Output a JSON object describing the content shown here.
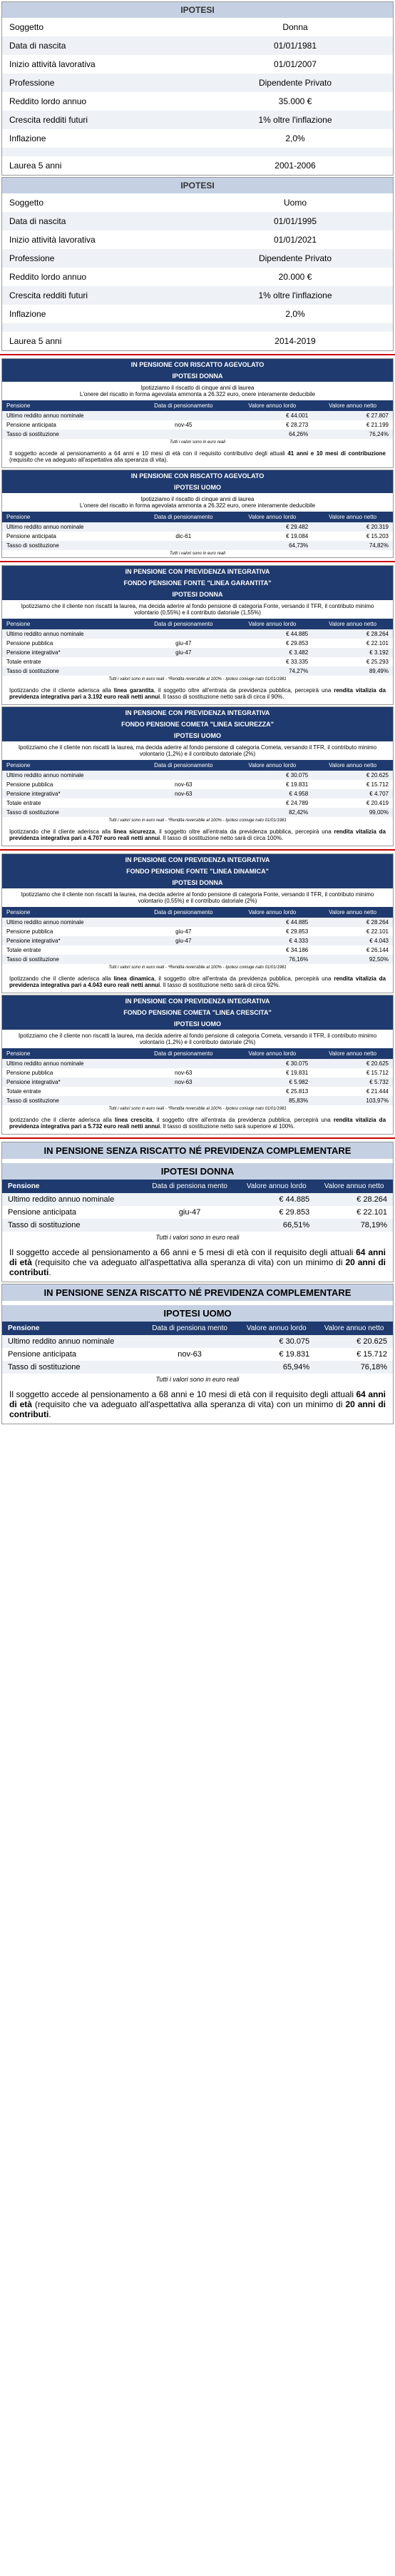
{
  "ipotesi1": {
    "title": "IPOTESI",
    "rows": [
      [
        "Soggetto",
        "Donna"
      ],
      [
        "Data di nascita",
        "01/01/1981"
      ],
      [
        "Inizio attività lavorativa",
        "01/01/2007"
      ],
      [
        "Professione",
        "Dipendente Privato"
      ],
      [
        "Reddito lordo annuo",
        "35.000 €"
      ],
      [
        "Crescita redditi futuri",
        "1% oltre l'inflazione"
      ],
      [
        "Inflazione",
        "2,0%"
      ],
      [
        "",
        ""
      ],
      [
        "Laurea 5 anni",
        "2001-2006"
      ]
    ]
  },
  "ipotesi2": {
    "title": "IPOTESI",
    "rows": [
      [
        "Soggetto",
        "Uomo"
      ],
      [
        "Data di nascita",
        "01/01/1995"
      ],
      [
        "Inizio attività lavorativa",
        "01/01/2021"
      ],
      [
        "Professione",
        "Dipendente Privato"
      ],
      [
        "Reddito lordo annuo",
        "20.000 €"
      ],
      [
        "Crescita redditi futuri",
        "1% oltre l'inflazione"
      ],
      [
        "Inflazione",
        "2,0%"
      ],
      [
        "",
        ""
      ],
      [
        "Laurea 5 anni",
        "2014-2019"
      ]
    ]
  },
  "s1": {
    "title": "IN PENSIONE CON RISCATTO AGEVOLATO",
    "sub": "IPOTESI DONNA",
    "intro": "Ipotizziamo il riscatto di cinque anni di laurea\nL'onere del riscatto in forma agevolata ammonta a 26.322 euro, onere interamente deducibile",
    "cols": [
      "Pensione",
      "Data di pensionamento",
      "Valore annuo lordo",
      "Valore annuo netto"
    ],
    "rows": [
      [
        "Ultimo reddito annuo nominale",
        "",
        "€ 44.001",
        "€ 27.807"
      ],
      [
        "Pensione anticipata",
        "nov-45",
        "€ 28.273",
        "€ 21.199"
      ],
      [
        "Tasso di sostituzione",
        "",
        "64,26%",
        "76,24%"
      ]
    ],
    "fn": "Tutti i valori sono in euro reali",
    "note": "Il soggetto accede al pensionamento a 64 anni e 10 mesi di età con il requisito contributivo degli attuali <b>41 anni e 10 mesi di contribuzione</b> (requisito che va adeguato all'aspettativa alla speranza di vita)."
  },
  "s2": {
    "title": "IN PENSIONE CON RISCATTO AGEVOLATO",
    "sub": "IPOTESI UOMO",
    "intro": "Ipotizziamo il riscatto di cinque anni di laurea\nL'onere del riscatto in forma agevolata ammonta a 26.322 euro, onere interamente deducibile",
    "cols": [
      "Pensione",
      "Data di pensionamento",
      "Valore annuo lordo",
      "Valore annuo netto"
    ],
    "rows": [
      [
        "Ultimo reddito annuo nominale",
        "",
        "€ 29.482",
        "€ 20.319"
      ],
      [
        "Pensione anticipata",
        "dic-61",
        "€ 19.084",
        "€ 15.203"
      ],
      [
        "Tasso di sostituzione",
        "",
        "64,73%",
        "74,82%"
      ]
    ],
    "fn": "Tutti i valori sono in euro reali"
  },
  "s3": {
    "title": "IN PENSIONE CON PREVIDENZA INTEGRATIVA",
    "sub": "FONDO PENSIONE FONTE \"LINEA GARANTITA\"",
    "sub2": "IPOTESI DONNA",
    "intro": "Ipotizziamo che il cliente non riscatti la laurea, ma decida aderire al fondo pensione di categoria Fonte, versando il TFR, il contributo minimo volontario (0,55%) e il contributo datoriale (1,55%)",
    "cols": [
      "Pensione",
      "Data di pensionamento",
      "Valore annuo lordo",
      "Valore annuo netto"
    ],
    "rows": [
      [
        "Ultimo reddito annuo nominale",
        "",
        "€ 44.885",
        "€ 28.264"
      ],
      [
        "Pensione pubblica",
        "giu-47",
        "€ 29.853",
        "€ 22.101"
      ],
      [
        "Pensione integrativa*",
        "giu-47",
        "€ 3.482",
        "€ 3.192"
      ],
      [
        "Totale entrate",
        "",
        "€ 33.335",
        "€ 25.293"
      ],
      [
        "Tasso di sostituzione",
        "",
        "74,27%",
        "89,49%"
      ]
    ],
    "fn": "Tutti i valori sono in euro reali - *Rendita reversibile al 100% - Ipotesi coniuge nato 01/01/1981",
    "note": "Ipotizzando che il cliente aderisca alla <b>linea garantita</b>, il soggetto oltre all'entrata da previdenza pubblica, percepirà una <b>rendita vitalizia da previdenza integrativa pari a 3.192 euro reali netti annui</b>. Il tasso di sostituzione netto sarà di circa il 90%."
  },
  "s4": {
    "title": "IN PENSIONE CON PREVIDENZA INTEGRATIVA",
    "sub": "FONDO PENSIONE COMETA \"LINEA SICUREZZA\"",
    "sub2": "IPOTESI UOMO",
    "intro": "Ipotizziamo che il cliente non riscatti la laurea, ma decida aderire al fondo pensione di categoria Cometa, versando il TFR, il contributo minimo volontario (1,2%) e il contributo datoriale (2%)",
    "cols": [
      "Pensione",
      "Data di pensionamento",
      "Valore annuo lordo",
      "Valore annuo netto"
    ],
    "rows": [
      [
        "Ultimo reddito annuo nominale",
        "",
        "€ 30.075",
        "€ 20.625"
      ],
      [
        "Pensione pubblica",
        "nov-63",
        "€ 19.831",
        "€ 15.712"
      ],
      [
        "Pensione integrativa*",
        "nov-63",
        "€ 4.958",
        "€ 4.707"
      ],
      [
        "Totale entrate",
        "",
        "€ 24.789",
        "€ 20.419"
      ],
      [
        "Tasso di sostituzione",
        "",
        "82,42%",
        "99,00%"
      ]
    ],
    "fn": "Tutti i valori sono in euro reali - *Rendita reversibile al 100% - Ipotesi coniuge nato 01/01/1981",
    "note": "Ipotizzando che il cliente aderisca alla <b>linea sicurezza</b>, il soggetto oltre all'entrata da previdenza pubblica, percepirà una <b>rendita vitalizia da previdenza integrativa pari a 4.707 euro reali netti annui</b>. Il tasso di sostituzione netto sarà di circa 100%."
  },
  "s5": {
    "title": "IN PENSIONE CON PREVIDENZA INTEGRATIVA",
    "sub": "FONDO PENSIONE FONTE \"LINEA DINAMICA\"",
    "sub2": "IPOTESI DONNA",
    "intro": "Ipotizziamo che il cliente non riscatti la laurea, ma decida aderire al fondo pensione di categoria Fonte, versando il TFR, il contributo minimo volontario (0,55%) e il contributo datoriale (2%)",
    "cols": [
      "Pensione",
      "Data di pensionamento",
      "Valore annuo lordo",
      "Valore annuo netto"
    ],
    "rows": [
      [
        "Ultimo reddito annuo nominale",
        "",
        "€ 44.885",
        "€ 28.264"
      ],
      [
        "Pensione pubblica",
        "giu-47",
        "€ 29.853",
        "€ 22.101"
      ],
      [
        "Pensione integrativa*",
        "giu-47",
        "€ 4.333",
        "€ 4.043"
      ],
      [
        "Totale entrate",
        "",
        "€ 34.186",
        "€ 26.144"
      ],
      [
        "Tasso di sostituzione",
        "",
        "76,16%",
        "92,50%"
      ]
    ],
    "fn": "Tutti i valori sono in euro reali - *Rendita reversibile al 100% - Ipotesi coniuge nato 01/01/1981",
    "note": "Ipotizzando che il cliente aderisca alla <b>linea dinamica</b>, il soggetto oltre all'entrata da previdenza pubblica, percepirà una <b>rendita vitalizia da previdenza integrativa pari a 4.043 euro reali netti annui</b>. Il tasso di sostituzione netto sarà di circa 92%."
  },
  "s6": {
    "title": "IN PENSIONE CON PREVIDENZA INTEGRATIVA",
    "sub": "FONDO PENSIONE COMETA \"LINEA CRESCITA\"",
    "sub2": "IPOTESI UOMO",
    "intro": "Ipotizziamo che il cliente non riscatti la laurea, ma decida aderire al fondo pensione di categoria Cometa, versando il TFR, il contributo minimo volontario (1,2%) e il contributo datoriale (2%)",
    "cols": [
      "Pensione",
      "Data di pensionamento",
      "Valore annuo lordo",
      "Valore annuo netto"
    ],
    "rows": [
      [
        "Ultimo reddito annuo nominale",
        "",
        "€ 30.075",
        "€ 20.625"
      ],
      [
        "Pensione pubblica",
        "nov-63",
        "€ 19.831",
        "€ 15.712"
      ],
      [
        "Pensione integrativa*",
        "nov-63",
        "€ 5.982",
        "€ 5.732"
      ],
      [
        "Totale entrate",
        "",
        "€ 25.813",
        "€ 21.444"
      ],
      [
        "Tasso di sostituzione",
        "",
        "85,83%",
        "103,97%"
      ]
    ],
    "fn": "Tutti i valori sono in euro reali - *Rendita reversibile al 100% - Ipotesi coniuge nato 01/01/1981",
    "note": "Ipotizzando che il cliente aderisca alla <b>linea crescita</b>, il soggetto oltre all'entrata da previdenza pubblica, percepirà una <b>rendita vitalizia da previdenza integrativa pari a 5.732 euro reali netti annui</b>. Il tasso di sostituzione netto sarà superiore al 100%."
  },
  "big1": {
    "title": "IN PENSIONE SENZA RISCATTO NÉ PREVIDENZA COMPLEMENTARE",
    "sub": "IPOTESI DONNA",
    "cols": [
      "Pensione",
      "Data di pensiona mento",
      "Valore annuo lordo",
      "Valore annuo netto"
    ],
    "rows": [
      [
        "Ultimo reddito annuo nominale",
        "",
        "€ 44.885",
        "€ 28.264"
      ],
      [
        "Pensione anticipata",
        "giu-47",
        "€ 29.853",
        "€ 22.101"
      ],
      [
        "Tasso di sostituzione",
        "",
        "66,51%",
        "78,19%"
      ]
    ],
    "fn": "Tutti i valori sono in euro reali",
    "note": "Il soggetto accede al pensionamento a 66 anni e 5 mesi di età con il requisito degli attuali <b>64 anni di età</b> (requisito che va adeguato all'aspettativa alla speranza di vita) con un minimo di <b>20 anni di contributi</b>."
  },
  "big2": {
    "title": "IN PENSIONE SENZA RISCATTO NÉ PREVIDENZA COMPLEMENTARE",
    "sub": "IPOTESI UOMO",
    "cols": [
      "Pensione",
      "Data di pensiona mento",
      "Valore annuo lordo",
      "Valore annuo netto"
    ],
    "rows": [
      [
        "Ultimo reddito annuo nominale",
        "",
        "€ 30.075",
        "€ 20.625"
      ],
      [
        "Pensione anticipata",
        "nov-63",
        "€ 19.831",
        "€ 15.712"
      ],
      [
        "Tasso di sostituzione",
        "",
        "65,94%",
        "76,18%"
      ]
    ],
    "fn": "Tutti i valori sono in euro reali",
    "note": "Il soggetto accede al pensionamento a 68 anni e 10 mesi di età con il requisito degli attuali <b>64 anni di età</b> (requisito che va adeguato all'aspettativa alla speranza di vita) con un minimo di <b>20 anni di contributi</b>."
  }
}
